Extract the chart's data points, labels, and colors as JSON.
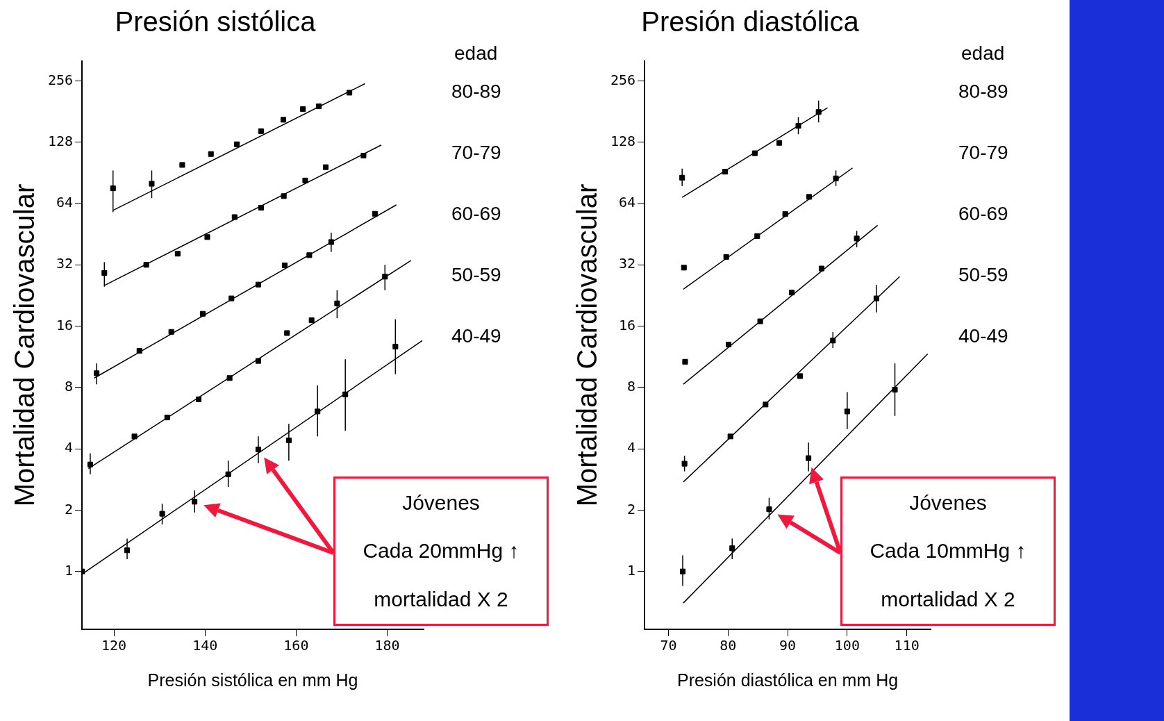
{
  "chart_data": [
    {
      "type": "scatter",
      "title": "Presión sistólica",
      "xlabel": "Presión sistólica en mm Hg",
      "ylabel": "Mortalidad Cardiovascular",
      "legend_title": "edad",
      "legend": "right",
      "log": "y",
      "marker": "square",
      "xlim": [
        113,
        188
      ],
      "xticks": [
        120,
        140,
        160,
        180
      ],
      "ylim": [
        0.52,
        320
      ],
      "yticks": [
        1,
        2,
        4,
        8,
        16,
        32,
        64,
        128,
        256
      ],
      "series": [
        {
          "name": "80-89",
          "color": "#000000",
          "x": [
            119.8,
            128.3,
            135,
            141.3,
            147,
            152.3,
            157.2,
            161.5,
            165,
            171.7
          ],
          "values": [
            76,
            80,
            99,
            112,
            125,
            145,
            165,
            186,
            192,
            224
          ],
          "errors": [
            [
              58,
              93
            ],
            [
              68,
              93
            ],
            null,
            null,
            null,
            null,
            null,
            null,
            null,
            null
          ]
        },
        {
          "name": "70-79",
          "color": "#000000",
          "x": [
            117.9,
            127.1,
            134,
            140.5,
            146.5,
            152.3,
            157.3,
            162,
            166.5,
            174.8
          ],
          "values": [
            29.2,
            32,
            36.3,
            43.8,
            54.9,
            61,
            69.6,
            83,
            96.5,
            110
          ],
          "errors": [
            [
              25,
              33
            ],
            null,
            null,
            null,
            null,
            null,
            null,
            null,
            null,
            null
          ]
        },
        {
          "name": "60-69",
          "color": "#000000",
          "x": [
            116.2,
            125.6,
            132.6,
            139.5,
            145.8,
            151.7,
            157.5,
            162.9,
            167.7,
            177.3
          ],
          "values": [
            9.4,
            12.1,
            15,
            18.4,
            21.9,
            25.6,
            31.8,
            35.7,
            41.4,
            57
          ],
          "errors": [
            [
              8.3,
              10.5
            ],
            null,
            null,
            null,
            null,
            null,
            null,
            null,
            [
              37,
              46
            ],
            null
          ]
        },
        {
          "name": "50-59",
          "color": "#000000",
          "x": [
            114.8,
            124.5,
            131.7,
            138.6,
            145.4,
            151.7,
            158,
            163.4,
            169,
            179.5
          ],
          "values": [
            3.35,
            4.6,
            5.7,
            7.0,
            8.9,
            10.8,
            14.8,
            17.1,
            20.7,
            28
          ],
          "errors": [
            [
              3.0,
              3.8
            ],
            null,
            null,
            null,
            null,
            null,
            null,
            null,
            [
              17.5,
              24
            ],
            [
              24,
              32
            ]
          ]
        },
        {
          "name": "40-49",
          "color": "#000000",
          "x": [
            113,
            122.9,
            130.6,
            137.7,
            145.1,
            151.7,
            158.4,
            164.7,
            170.8,
            181.8
          ],
          "values": [
            1.0,
            1.27,
            1.92,
            2.2,
            3.0,
            3.97,
            4.4,
            6.1,
            7.4,
            12.7
          ],
          "errors": [
            [
              0.8,
              1.3
            ],
            [
              1.15,
              1.45
            ],
            [
              1.7,
              2.15
            ],
            [
              1.95,
              2.5
            ],
            [
              2.6,
              3.5
            ],
            [
              3.4,
              4.6
            ],
            [
              3.5,
              5.3
            ],
            [
              4.6,
              8.2
            ],
            [
              4.9,
              11
            ],
            [
              9.3,
              17.3
            ]
          ]
        },
        {
          "type": "line",
          "marker": "none",
          "color": "#000000",
          "x": [
            119.8,
            175.1
          ],
          "values": [
            59.2,
            248
          ]
        },
        {
          "type": "line",
          "marker": "none",
          "color": "#000000",
          "x": [
            118,
            178.7
          ],
          "values": [
            25.4,
            124
          ]
        },
        {
          "type": "line",
          "marker": "none",
          "color": "#000000",
          "x": [
            115.7,
            182
          ],
          "values": [
            8.9,
            63
          ]
        },
        {
          "type": "line",
          "marker": "none",
          "color": "#000000",
          "x": [
            114.4,
            185.2
          ],
          "values": [
            3.2,
            33.6
          ]
        },
        {
          "type": "line",
          "marker": "none",
          "color": "#000000",
          "x": [
            113,
            187.7
          ],
          "values": [
            0.97,
            13.6
          ]
        }
      ],
      "annotations": [
        "Jóvenes",
        "Cada 20mmHg ↑",
        "mortalidad X  2"
      ]
    },
    {
      "type": "scatter",
      "title": "Presión diastólica",
      "xlabel": "Presión diastólica en mm Hg",
      "ylabel": "Mortalidad Cardiovascular",
      "legend_title": "edad",
      "legend": "right",
      "log": "y",
      "marker": "square",
      "xlim": [
        66,
        114
      ],
      "xticks": [
        70,
        80,
        90,
        100,
        110
      ],
      "ylim": [
        0.52,
        320
      ],
      "yticks": [
        1,
        2,
        4,
        8,
        16,
        32,
        64,
        128,
        256
      ],
      "series": [
        {
          "name": "80-89",
          "color": "#000000",
          "x": [
            72.3,
            79.5,
            84.5,
            88.6,
            91.8,
            95.2
          ],
          "values": [
            85.7,
            91.7,
            113,
            127,
            154,
            180
          ],
          "errors": [
            [
              78,
              95
            ],
            null,
            null,
            null,
            [
              140,
              170
            ],
            [
              160,
              205
            ]
          ]
        },
        {
          "name": "70-79",
          "color": "#000000",
          "x": [
            72.6,
            79.7,
            84.9,
            89.6,
            93.6,
            98.1
          ],
          "values": [
            31,
            35,
            44.3,
            56.8,
            69,
            85
          ],
          "errors": [
            null,
            null,
            null,
            null,
            null,
            [
              78,
              93
            ]
          ]
        },
        {
          "name": "60-69",
          "color": "#000000",
          "x": [
            72.8,
            80.1,
            85.4,
            90.7,
            95.7,
            101.6
          ],
          "values": [
            10.7,
            13,
            16.9,
            23.4,
            30.7,
            43.1
          ],
          "errors": [
            null,
            null,
            null,
            null,
            null,
            [
              39,
              47
            ]
          ]
        },
        {
          "name": "50-59",
          "color": "#000000",
          "x": [
            72.7,
            80.4,
            86.3,
            92.1,
            97.6,
            104.9
          ],
          "values": [
            3.38,
            4.6,
            6.6,
            9.1,
            13.6,
            21.9
          ],
          "errors": [
            [
              3.1,
              3.7
            ],
            null,
            null,
            null,
            [
              12.5,
              15
            ],
            [
              18.7,
              25.5
            ]
          ]
        },
        {
          "name": "40-49",
          "color": "#000000",
          "x": [
            72.4,
            80.7,
            86.9,
            93.5,
            100,
            108
          ],
          "values": [
            1.0,
            1.3,
            2.02,
            3.6,
            6.1,
            7.8
          ],
          "errors": [
            [
              0.85,
              1.2
            ],
            [
              1.15,
              1.45
            ],
            [
              1.8,
              2.3
            ],
            [
              3.1,
              4.3
            ],
            [
              5.0,
              7.6
            ],
            [
              5.8,
              10.5
            ]
          ]
        },
        {
          "type": "line",
          "marker": "none",
          "color": "#000000",
          "x": [
            72.3,
            96.7
          ],
          "values": [
            68.6,
            189
          ]
        },
        {
          "type": "line",
          "marker": "none",
          "color": "#000000",
          "x": [
            72.5,
            100.9
          ],
          "values": [
            24.3,
            95.7
          ]
        },
        {
          "type": "line",
          "marker": "none",
          "color": "#000000",
          "x": [
            72.5,
            105.1
          ],
          "values": [
            8.3,
            50
          ]
        },
        {
          "type": "line",
          "marker": "none",
          "color": "#000000",
          "x": [
            72.5,
            108.8
          ],
          "values": [
            2.75,
            28
          ]
        },
        {
          "type": "line",
          "marker": "none",
          "color": "#000000",
          "x": [
            72.5,
            113.5
          ],
          "values": [
            0.7,
            11.7
          ]
        }
      ],
      "annotations": [
        "Jóvenes",
        "Cada 10mmHg ↑",
        "mortalidad X  2"
      ]
    }
  ]
}
